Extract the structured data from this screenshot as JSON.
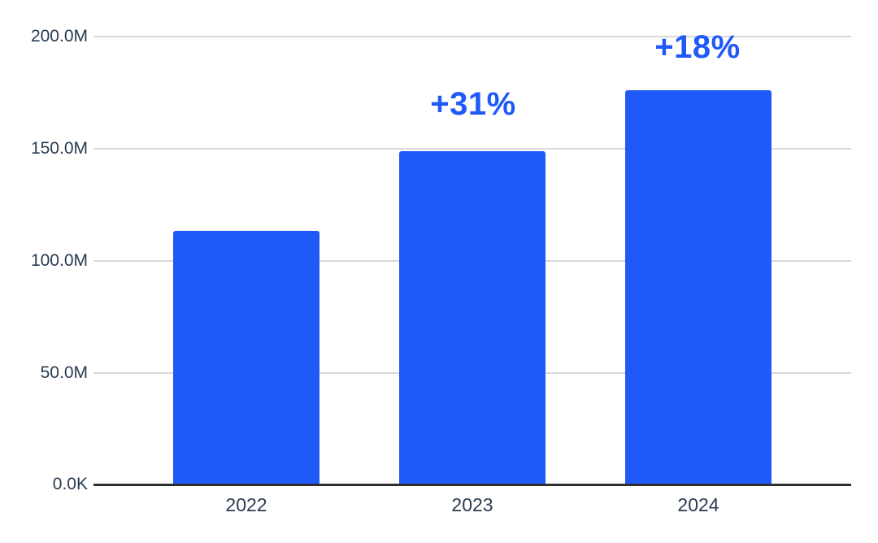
{
  "chart_data": {
    "type": "bar",
    "title": "",
    "xlabel": "",
    "ylabel": "",
    "categories": [
      "2022",
      "2023",
      "2024"
    ],
    "values_millions": [
      113.3,
      148.8,
      176.1
    ],
    "ylim_millions": [
      0,
      200
    ],
    "grid": true,
    "legend": false,
    "y_ticks": [
      {
        "label": "200.0M",
        "value_millions": 200
      },
      {
        "label": "150.0M",
        "value_millions": 150
      },
      {
        "label": "100.0M",
        "value_millions": 100
      },
      {
        "label": "50.0M",
        "value_millions": 50
      },
      {
        "label": "0.0K",
        "value_millions": 0
      }
    ],
    "annotations": [
      {
        "category": "2023",
        "category_index": 1,
        "label": "+31%"
      },
      {
        "category": "2024",
        "category_index": 2,
        "label": "+18%"
      }
    ]
  },
  "colors": {
    "bar": "#1f5af9",
    "annotation": "#1f5af9",
    "axis_label": "#2a3b50",
    "gridline": "#d9d9d9",
    "axis_line": "#2e2e2e",
    "background": "#ffffff"
  }
}
